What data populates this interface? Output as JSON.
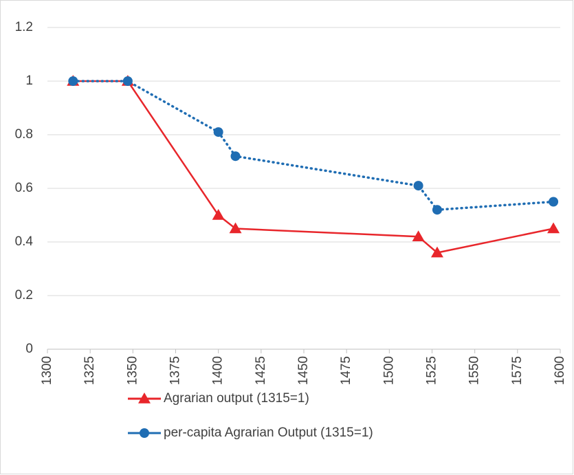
{
  "chart_data": {
    "type": "line",
    "x": [
      1315,
      1347,
      1400,
      1410,
      1517,
      1528,
      1596
    ],
    "series": [
      {
        "name": "Agrarian output (1315=1)",
        "color": "#e8262b",
        "marker": "triangle",
        "dash": "solid",
        "values": [
          1,
          1,
          0.5,
          0.45,
          0.42,
          0.36,
          0.45
        ]
      },
      {
        "name": "per-capita Agrarian Output (1315=1)",
        "color": "#1f6db3",
        "marker": "circle",
        "dash": "dotted",
        "values": [
          1,
          1,
          0.81,
          0.72,
          0.61,
          0.52,
          0.55
        ]
      }
    ],
    "xlim": [
      1300,
      1600
    ],
    "xticks": [
      1300,
      1325,
      1350,
      1375,
      1400,
      1425,
      1450,
      1475,
      1500,
      1525,
      1550,
      1575,
      1600
    ],
    "ylim": [
      0,
      1.2
    ],
    "yticks": [
      0,
      0.2,
      0.4,
      0.6,
      0.8,
      1,
      1.2
    ],
    "grid": true,
    "legend": "bottom"
  }
}
